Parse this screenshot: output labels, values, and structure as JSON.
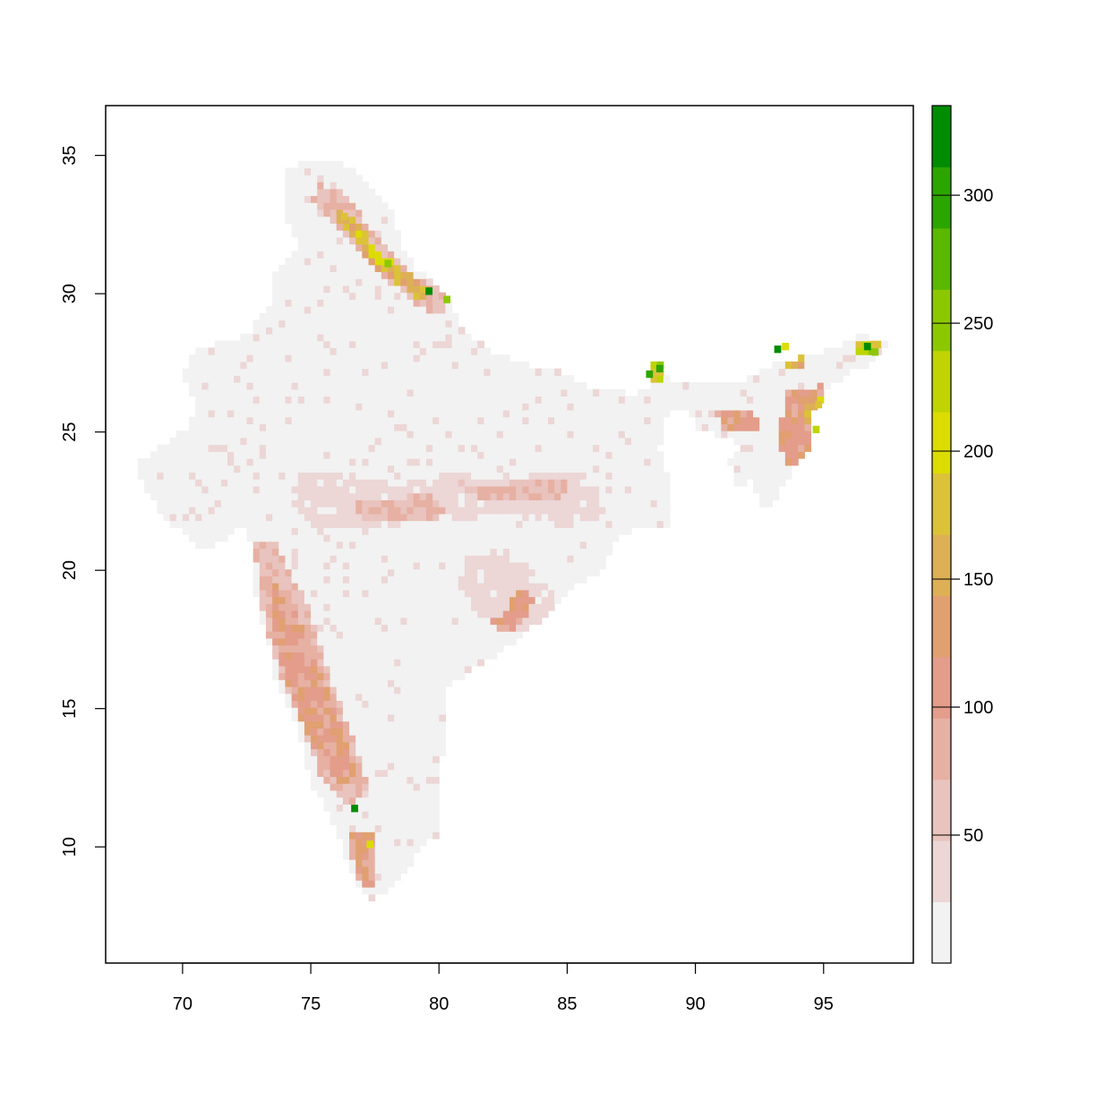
{
  "chart_data": {
    "type": "heatmap",
    "title": "",
    "xlabel": "",
    "ylabel": "",
    "xlim": [
      67,
      98.5
    ],
    "ylim": [
      5.8,
      36.8
    ],
    "x_ticks": [
      70,
      75,
      80,
      85,
      90,
      95
    ],
    "y_ticks": [
      10,
      15,
      20,
      25,
      30,
      35
    ],
    "x_tick_labels": [
      "70",
      "75",
      "80",
      "85",
      "90",
      "95"
    ],
    "y_tick_labels": [
      "10",
      "15",
      "20",
      "25",
      "30",
      "35"
    ],
    "legend": {
      "placement": "right",
      "range": [
        0,
        335
      ],
      "ticks": [
        50,
        100,
        150,
        200,
        250,
        300
      ],
      "tick_labels": [
        "50",
        "100",
        "150",
        "200",
        "250",
        "300"
      ],
      "palette": [
        "#f2f2f2",
        "#ecd6d6",
        "#e9c3bd",
        "#e6b0a3",
        "#e39d8a",
        "#e0a070",
        "#ddb056",
        "#dcc238",
        "#dcdc00",
        "#bfd400",
        "#8cc800",
        "#5ab800",
        "#2da500",
        "#008c00"
      ]
    },
    "grid": false,
    "cell_size_deg": 0.25,
    "value_classes": {
      "very_low": 5,
      "low": 30,
      "moderate": 70,
      "high": 110,
      "very_high": 160,
      "extreme": 220,
      "peak": 320
    },
    "land_outline": [
      [
        68.2,
        23.8
      ],
      [
        68.8,
        24.3
      ],
      [
        70.0,
        25.0
      ],
      [
        70.6,
        25.7
      ],
      [
        70.0,
        27.0
      ],
      [
        70.5,
        28.0
      ],
      [
        71.5,
        28.2
      ],
      [
        72.5,
        28.5
      ],
      [
        73.4,
        29.7
      ],
      [
        73.5,
        30.7
      ],
      [
        74.5,
        31.7
      ],
      [
        74.0,
        33.0
      ],
      [
        74.1,
        34.5
      ],
      [
        75.0,
        34.9
      ],
      [
        76.5,
        34.6
      ],
      [
        77.2,
        34.0
      ],
      [
        78.2,
        33.0
      ],
      [
        78.5,
        31.9
      ],
      [
        79.0,
        31.0
      ],
      [
        80.3,
        30.0
      ],
      [
        80.9,
        28.8
      ],
      [
        82.0,
        27.9
      ],
      [
        83.5,
        27.4
      ],
      [
        84.6,
        27.3
      ],
      [
        86.0,
        26.6
      ],
      [
        87.5,
        26.4
      ],
      [
        88.1,
        26.5
      ],
      [
        88.3,
        27.5
      ],
      [
        88.8,
        27.6
      ],
      [
        88.9,
        26.8
      ],
      [
        89.5,
        26.7
      ],
      [
        90.5,
        26.8
      ],
      [
        92.0,
        26.9
      ],
      [
        93.0,
        27.4
      ],
      [
        94.2,
        27.7
      ],
      [
        95.5,
        28.1
      ],
      [
        96.5,
        28.5
      ],
      [
        97.4,
        28.2
      ],
      [
        97.0,
        27.5
      ],
      [
        96.0,
        27.2
      ],
      [
        95.2,
        26.6
      ],
      [
        94.6,
        25.7
      ],
      [
        94.6,
        24.7
      ],
      [
        94.0,
        23.9
      ],
      [
        93.4,
        23.0
      ],
      [
        93.1,
        22.4
      ],
      [
        92.6,
        22.3
      ],
      [
        92.2,
        23.4
      ],
      [
        91.7,
        23.0
      ],
      [
        91.3,
        23.9
      ],
      [
        91.8,
        24.6
      ],
      [
        90.0,
        25.2
      ],
      [
        89.8,
        25.9
      ],
      [
        89.3,
        25.9
      ],
      [
        88.8,
        25.4
      ],
      [
        88.6,
        24.4
      ],
      [
        89.0,
        23.2
      ],
      [
        88.9,
        21.6
      ],
      [
        87.8,
        21.6
      ],
      [
        86.8,
        21.0
      ],
      [
        86.3,
        20.0
      ],
      [
        85.0,
        19.3
      ],
      [
        84.1,
        18.3
      ],
      [
        82.3,
        17.0
      ],
      [
        80.3,
        15.8
      ],
      [
        80.2,
        13.6
      ],
      [
        79.9,
        12.1
      ],
      [
        79.9,
        10.4
      ],
      [
        79.4,
        10.2
      ],
      [
        78.9,
        9.3
      ],
      [
        78.2,
        8.6
      ],
      [
        77.5,
        8.1
      ],
      [
        77.0,
        8.4
      ],
      [
        76.6,
        9.2
      ],
      [
        76.2,
        10.0
      ],
      [
        75.7,
        11.3
      ],
      [
        75.0,
        12.3
      ],
      [
        74.6,
        13.8
      ],
      [
        74.3,
        14.8
      ],
      [
        73.6,
        16.0
      ],
      [
        73.3,
        17.6
      ],
      [
        72.9,
        18.9
      ],
      [
        72.8,
        20.0
      ],
      [
        72.6,
        21.2
      ],
      [
        72.3,
        21.6
      ],
      [
        71.5,
        21.0
      ],
      [
        70.7,
        20.8
      ],
      [
        69.8,
        21.5
      ],
      [
        69.0,
        22.3
      ],
      [
        68.4,
        23.3
      ]
    ],
    "zones": [
      {
        "name": "western_ghats_a",
        "polygon": [
          [
            72.8,
            21.0
          ],
          [
            73.6,
            21.2
          ],
          [
            74.2,
            20.0
          ],
          [
            75.0,
            18.5
          ],
          [
            75.6,
            16.5
          ],
          [
            76.2,
            15.0
          ],
          [
            76.8,
            13.5
          ],
          [
            77.2,
            12.2
          ],
          [
            76.6,
            11.5
          ],
          [
            76.0,
            11.8
          ],
          [
            75.4,
            12.6
          ],
          [
            75.0,
            13.6
          ],
          [
            74.5,
            14.8
          ],
          [
            73.9,
            16.0
          ],
          [
            73.4,
            17.5
          ],
          [
            73.0,
            18.9
          ],
          [
            72.9,
            20.0
          ]
        ],
        "value": 70
      },
      {
        "name": "western_ghats_b",
        "polygon": [
          [
            73.6,
            19.6
          ],
          [
            74.3,
            19.0
          ],
          [
            74.9,
            17.4
          ],
          [
            75.6,
            15.8
          ],
          [
            76.3,
            14.0
          ],
          [
            76.8,
            12.9
          ],
          [
            76.3,
            12.1
          ],
          [
            75.5,
            12.8
          ],
          [
            74.8,
            14.3
          ],
          [
            74.1,
            15.8
          ],
          [
            73.6,
            17.5
          ]
        ],
        "value": 110
      },
      {
        "name": "southern_hills",
        "polygon": [
          [
            76.6,
            10.5
          ],
          [
            77.5,
            10.5
          ],
          [
            77.6,
            9.0
          ],
          [
            77.2,
            8.3
          ],
          [
            76.8,
            9.0
          ],
          [
            76.5,
            9.8
          ]
        ],
        "value": 110
      },
      {
        "name": "central_belt_a",
        "polygon": [
          [
            74.5,
            23.6
          ],
          [
            76.5,
            23.5
          ],
          [
            78.5,
            23.1
          ],
          [
            80.5,
            23.6
          ],
          [
            82.5,
            23.2
          ],
          [
            84.5,
            23.6
          ],
          [
            86.0,
            23.4
          ],
          [
            86.5,
            22.0
          ],
          [
            85.0,
            21.6
          ],
          [
            83.0,
            22.0
          ],
          [
            81.0,
            21.9
          ],
          [
            79.0,
            22.0
          ],
          [
            77.0,
            21.5
          ],
          [
            75.0,
            21.6
          ],
          [
            74.2,
            22.5
          ]
        ],
        "value": 30
      },
      {
        "name": "central_belt_b",
        "polygon": [
          [
            76.5,
            22.6
          ],
          [
            78.0,
            22.5
          ],
          [
            79.6,
            22.9
          ],
          [
            80.5,
            22.0
          ],
          [
            79.0,
            21.7
          ],
          [
            77.2,
            21.8
          ]
        ],
        "value": 70
      },
      {
        "name": "central_belt_c",
        "polygon": [
          [
            80.8,
            23.2
          ],
          [
            82.0,
            23.0
          ],
          [
            83.5,
            23.4
          ],
          [
            85.0,
            23.3
          ],
          [
            84.8,
            22.6
          ],
          [
            83.0,
            22.6
          ],
          [
            81.5,
            22.6
          ]
        ],
        "value": 70
      },
      {
        "name": "eastern_ghats",
        "polygon": [
          [
            81.0,
            20.5
          ],
          [
            82.5,
            20.5
          ],
          [
            83.8,
            20.0
          ],
          [
            84.6,
            19.0
          ],
          [
            84.0,
            18.0
          ],
          [
            82.6,
            17.8
          ],
          [
            81.4,
            18.5
          ],
          [
            80.8,
            19.5
          ]
        ],
        "value": 30
      },
      {
        "name": "eastern_ghats_core",
        "polygon": [
          [
            82.6,
            18.6
          ],
          [
            83.3,
            19.5
          ],
          [
            83.7,
            19.0
          ],
          [
            83.3,
            18.0
          ],
          [
            82.4,
            17.8
          ],
          [
            82.0,
            18.1
          ]
        ],
        "value": 110
      },
      {
        "name": "himalaya_west_a",
        "polygon": [
          [
            75.2,
            34.0
          ],
          [
            76.4,
            33.6
          ],
          [
            77.6,
            32.0
          ],
          [
            78.6,
            31.0
          ],
          [
            79.6,
            30.3
          ],
          [
            80.5,
            29.9
          ],
          [
            80.0,
            29.2
          ],
          [
            79.0,
            29.7
          ],
          [
            77.7,
            30.7
          ],
          [
            76.8,
            31.6
          ],
          [
            75.8,
            32.5
          ],
          [
            75.1,
            33.3
          ]
        ],
        "value": 70
      },
      {
        "name": "himalaya_west_b",
        "polygon": [
          [
            76.0,
            33.2
          ],
          [
            76.9,
            32.5
          ],
          [
            77.6,
            31.6
          ],
          [
            78.6,
            30.9
          ],
          [
            79.7,
            30.2
          ],
          [
            79.5,
            29.7
          ],
          [
            78.3,
            30.4
          ],
          [
            77.4,
            31.1
          ],
          [
            76.6,
            32.0
          ],
          [
            75.9,
            32.7
          ]
        ],
        "value": 160
      },
      {
        "name": "himalaya_west_c",
        "polygon": [
          [
            77.3,
            31.7
          ],
          [
            77.8,
            31.3
          ],
          [
            78.3,
            31.0
          ],
          [
            78.1,
            30.7
          ],
          [
            77.5,
            31.1
          ]
        ],
        "value": 220
      },
      {
        "name": "sikkim",
        "polygon": [
          [
            88.0,
            27.7
          ],
          [
            88.8,
            27.7
          ],
          [
            88.8,
            26.9
          ],
          [
            88.0,
            26.9
          ]
        ],
        "value": 220
      },
      {
        "name": "northeast_a",
        "polygon": [
          [
            90.8,
            25.8
          ],
          [
            92.3,
            25.8
          ],
          [
            92.6,
            25.1
          ],
          [
            91.0,
            25.1
          ]
        ],
        "value": 110
      },
      {
        "name": "northeast_b",
        "polygon": [
          [
            93.0,
            28.3
          ],
          [
            94.3,
            28.3
          ],
          [
            94.2,
            27.3
          ],
          [
            93.0,
            27.5
          ]
        ],
        "value": 160
      },
      {
        "name": "northeast_c",
        "polygon": [
          [
            93.6,
            26.5
          ],
          [
            95.0,
            26.7
          ],
          [
            95.1,
            25.0
          ],
          [
            94.6,
            24.0
          ],
          [
            93.7,
            23.7
          ],
          [
            93.2,
            24.8
          ]
        ],
        "value": 110
      },
      {
        "name": "northeast_d",
        "polygon": [
          [
            94.3,
            26.3
          ],
          [
            95.0,
            26.4
          ],
          [
            95.0,
            24.9
          ],
          [
            94.4,
            25.1
          ]
        ],
        "value": 160
      },
      {
        "name": "northeast_e",
        "polygon": [
          [
            96.2,
            28.4
          ],
          [
            97.2,
            28.3
          ],
          [
            97.1,
            27.8
          ],
          [
            96.2,
            27.9
          ]
        ],
        "value": 220
      }
    ],
    "points": [
      {
        "x": 79.6,
        "y": 30.1,
        "value": 320
      },
      {
        "x": 78.0,
        "y": 31.1,
        "value": 250
      },
      {
        "x": 76.7,
        "y": 11.4,
        "value": 320
      },
      {
        "x": 77.3,
        "y": 10.1,
        "value": 200
      },
      {
        "x": 88.6,
        "y": 27.3,
        "value": 300
      },
      {
        "x": 88.2,
        "y": 27.1,
        "value": 300
      },
      {
        "x": 93.2,
        "y": 28.0,
        "value": 320
      },
      {
        "x": 93.5,
        "y": 28.1,
        "value": 200
      },
      {
        "x": 96.7,
        "y": 28.1,
        "value": 320
      },
      {
        "x": 97.0,
        "y": 27.9,
        "value": 250
      },
      {
        "x": 94.7,
        "y": 25.1,
        "value": 220
      },
      {
        "x": 94.8,
        "y": 26.0,
        "value": 190
      },
      {
        "x": 80.3,
        "y": 29.8,
        "value": 250
      },
      {
        "x": 76.3,
        "y": 32.8,
        "value": 190
      }
    ]
  }
}
